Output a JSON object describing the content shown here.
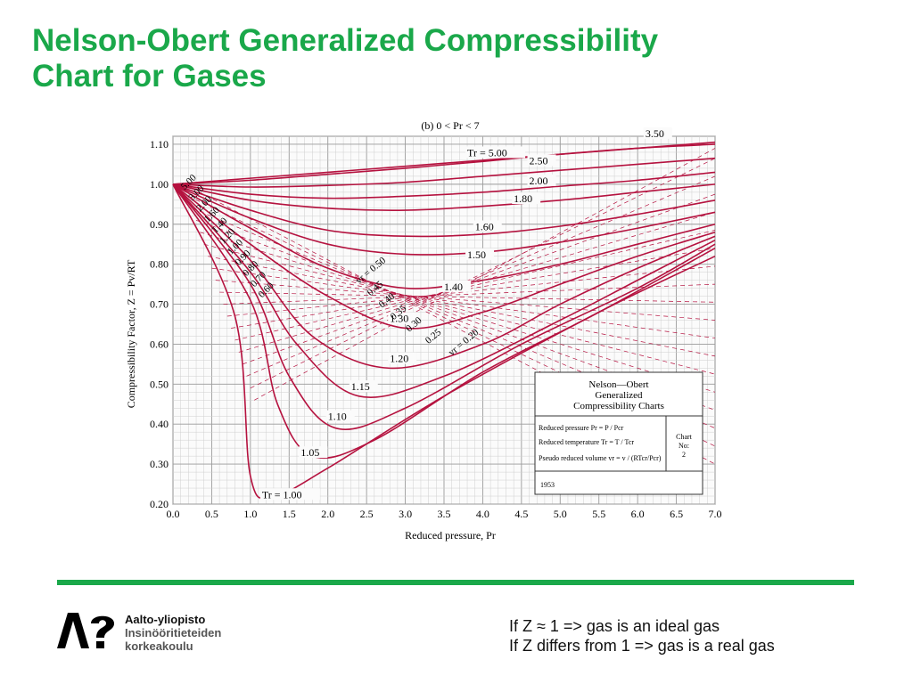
{
  "slide": {
    "title_line1": "Nelson-Obert Generalized Compressibility",
    "title_line2": "Chart for Gases"
  },
  "chart_data": {
    "type": "line",
    "title": "(b) 0 < Pr < 7",
    "xlabel": "Reduced pressure, Pr",
    "ylabel": "Compressibility Factor, Z = Pv/RT",
    "xlim": [
      0,
      7
    ],
    "ylim": [
      0.2,
      1.12
    ],
    "x_ticks": [
      "0.0",
      "0.5",
      "1.0",
      "1.5",
      "2.0",
      "2.5",
      "3.0",
      "3.5",
      "4.0",
      "4.5",
      "5.0",
      "5.5",
      "6.0",
      "6.5",
      "7.0"
    ],
    "y_ticks": [
      "0.20",
      "0.30",
      "0.40",
      "0.50",
      "0.60",
      "0.70",
      "0.80",
      "0.90",
      "1.00",
      "1.10"
    ],
    "grid": true,
    "series_color": "#b5123f",
    "isotherms": [
      {
        "label": "Tr = 5.00",
        "points": [
          [
            0,
            1
          ],
          [
            1,
            1.015
          ],
          [
            2,
            1.03
          ],
          [
            3,
            1.045
          ],
          [
            4,
            1.06
          ],
          [
            5,
            1.075
          ],
          [
            6,
            1.09
          ],
          [
            7,
            1.105
          ]
        ]
      },
      {
        "label": "3.50",
        "points": [
          [
            0,
            1
          ],
          [
            1,
            1.01
          ],
          [
            2,
            1.025
          ],
          [
            3,
            1.04
          ],
          [
            4,
            1.057
          ],
          [
            5,
            1.075
          ],
          [
            6,
            1.09
          ],
          [
            7,
            1.1
          ]
        ]
      },
      {
        "label": "2.50",
        "points": [
          [
            0,
            1
          ],
          [
            1,
            0.993
          ],
          [
            2,
            0.997
          ],
          [
            3,
            1.005
          ],
          [
            4,
            1.02
          ],
          [
            5,
            1.035
          ],
          [
            6,
            1.05
          ],
          [
            7,
            1.065
          ]
        ]
      },
      {
        "label": "2.00",
        "points": [
          [
            0,
            1
          ],
          [
            1,
            0.975
          ],
          [
            2,
            0.965
          ],
          [
            3,
            0.97
          ],
          [
            4,
            0.98
          ],
          [
            5,
            0.995
          ],
          [
            6,
            1.01
          ],
          [
            7,
            1.03
          ]
        ]
      },
      {
        "label": "1.80",
        "points": [
          [
            0,
            1
          ],
          [
            1,
            0.96
          ],
          [
            2,
            0.94
          ],
          [
            3,
            0.935
          ],
          [
            4,
            0.945
          ],
          [
            5,
            0.96
          ],
          [
            6,
            0.98
          ],
          [
            7,
            1.0
          ]
        ]
      },
      {
        "label": "1.60",
        "points": [
          [
            0,
            1
          ],
          [
            1,
            0.935
          ],
          [
            2,
            0.885
          ],
          [
            3,
            0.87
          ],
          [
            4,
            0.875
          ],
          [
            5,
            0.895
          ],
          [
            6,
            0.925
          ],
          [
            7,
            0.96
          ]
        ]
      },
      {
        "label": "1.50",
        "points": [
          [
            0,
            1
          ],
          [
            1,
            0.915
          ],
          [
            2,
            0.85
          ],
          [
            3,
            0.825
          ],
          [
            4,
            0.83
          ],
          [
            5,
            0.855
          ],
          [
            6,
            0.89
          ],
          [
            7,
            0.93
          ]
        ]
      },
      {
        "label": "1.40",
        "points": [
          [
            0,
            1
          ],
          [
            1,
            0.89
          ],
          [
            2,
            0.79
          ],
          [
            3,
            0.74
          ],
          [
            4,
            0.76
          ],
          [
            5,
            0.8
          ],
          [
            6,
            0.85
          ],
          [
            7,
            0.9
          ]
        ]
      },
      {
        "label": "1.30",
        "points": [
          [
            0,
            1
          ],
          [
            1,
            0.85
          ],
          [
            2,
            0.72
          ],
          [
            3,
            0.64
          ],
          [
            4,
            0.68
          ],
          [
            5,
            0.75
          ],
          [
            6,
            0.82
          ],
          [
            7,
            0.88
          ]
        ]
      },
      {
        "label": "1.20",
        "points": [
          [
            0,
            1
          ],
          [
            1,
            0.81
          ],
          [
            1.8,
            0.62
          ],
          [
            2.8,
            0.54
          ],
          [
            4,
            0.6
          ],
          [
            5,
            0.7
          ],
          [
            6,
            0.79
          ],
          [
            7,
            0.87
          ]
        ]
      },
      {
        "label": "1.15",
        "points": [
          [
            0,
            1
          ],
          [
            1,
            0.78
          ],
          [
            1.6,
            0.6
          ],
          [
            2.4,
            0.47
          ],
          [
            3.5,
            0.52
          ],
          [
            5,
            0.66
          ],
          [
            6,
            0.76
          ],
          [
            7,
            0.86
          ]
        ]
      },
      {
        "label": "1.10",
        "points": [
          [
            0,
            1
          ],
          [
            1,
            0.75
          ],
          [
            1.5,
            0.52
          ],
          [
            2.1,
            0.39
          ],
          [
            3,
            0.44
          ],
          [
            4.5,
            0.6
          ],
          [
            6,
            0.74
          ],
          [
            7,
            0.85
          ]
        ]
      },
      {
        "label": "1.05",
        "points": [
          [
            0,
            1
          ],
          [
            1,
            0.71
          ],
          [
            1.35,
            0.45
          ],
          [
            1.8,
            0.32
          ],
          [
            2.6,
            0.36
          ],
          [
            4,
            0.53
          ],
          [
            5.5,
            0.68
          ],
          [
            7,
            0.84
          ]
        ]
      },
      {
        "label": "Tr = 1.00",
        "points": [
          [
            0,
            1
          ],
          [
            0.8,
            0.67
          ],
          [
            1.0,
            0.27
          ],
          [
            1.3,
            0.22
          ],
          [
            2,
            0.29
          ],
          [
            3.5,
            0.47
          ],
          [
            5.5,
            0.68
          ],
          [
            7,
            0.82
          ]
        ]
      }
    ],
    "isotherm_labels_left": [
      "5.00",
      "3.00",
      "2.00",
      "1.60",
      "1.40",
      "1.20",
      "1.00",
      "0.90",
      "0.80",
      "0.70",
      "0.60"
    ],
    "isochore_labels": [
      "vr = 0.50",
      "0.45",
      "0.40",
      "0.35",
      "0.30",
      "0.25",
      "vr = 0.20"
    ],
    "legend_box": {
      "title_line1": "Nelson—Obert",
      "title_line2": "Generalized",
      "title_line3": "Compressibility Charts",
      "def1": "Reduced pressure Pr = P / Pcr",
      "def2": "Reduced temperature Tr = T / Tcr",
      "def3": "Pseudo reduced volume vr = v / (RTcr/Pcr)",
      "chart_no_line1": "Chart",
      "chart_no_line2": "No:",
      "chart_no_line3": "2",
      "year": "1953"
    }
  },
  "footer": {
    "org_line1": "Aalto-yliopisto",
    "org_line2": "Insinööritieteiden",
    "org_line3": "korkeakoulu",
    "note1": "If Z ≈ 1 => gas is an ideal gas",
    "note2": "If Z differs from 1 => gas is a real gas",
    "accent_color": "#1aa84a"
  }
}
